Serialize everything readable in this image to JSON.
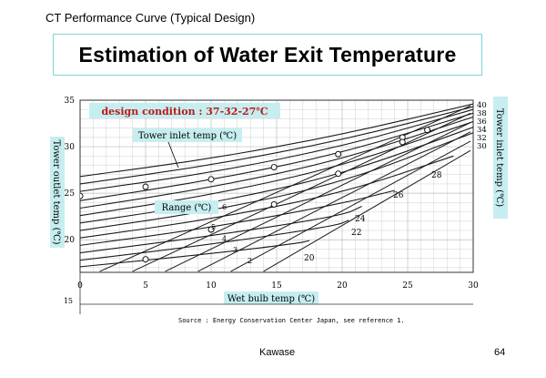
{
  "slide": {
    "header": "CT Performance Curve (Typical Design)",
    "title": "Estimation of Water Exit Temperature",
    "footer_left": "Kawase",
    "footer_right": "64"
  },
  "colors": {
    "label_box": "#c6eef0",
    "title_border": "#7fd3d3",
    "condition_text": "#c01818",
    "curve": "#1a1a1a",
    "grid": "#bdbdbd"
  },
  "chart_data": {
    "type": "line",
    "condition_label": "design condition : 37-32-27℃",
    "tower_inlet_label": "Tower inlet temp (℃)",
    "range_label": "Range (℃)",
    "xlabel": "Wet bulb temp (℃)",
    "ylabel": "Tower outlet temp (℃)",
    "y2label": "Tower inlet temp (℃)",
    "source": "Source : Energy Conservation Center Japan, see reference 1.",
    "xlim": [
      0,
      30
    ],
    "ylim": [
      16.5,
      35
    ],
    "x_ticks": [
      0,
      5,
      10,
      15,
      20,
      25,
      30
    ],
    "y_ticks": [
      15,
      20,
      25,
      30,
      35
    ],
    "right_tick_labels": [
      "40",
      "38",
      "36",
      "34",
      "32",
      "30"
    ],
    "range_tick_labels": [
      "6",
      "5",
      "4",
      "3",
      "2"
    ],
    "inlet_curve_labels": [
      "28",
      "26",
      "24",
      "22",
      "20"
    ],
    "inlet_curves": [
      {
        "points": [
          [
            0,
            26.8
          ],
          [
            10,
            28.7
          ],
          [
            20,
            31.3
          ],
          [
            30,
            34.6
          ]
        ]
      },
      {
        "points": [
          [
            0,
            26.0
          ],
          [
            10,
            28.0
          ],
          [
            20,
            30.7
          ],
          [
            30,
            34.3
          ]
        ]
      },
      {
        "points": [
          [
            0,
            25.2
          ],
          [
            10,
            27.2
          ],
          [
            20,
            30.0
          ],
          [
            30,
            34.0
          ]
        ]
      },
      {
        "points": [
          [
            0,
            24.2
          ],
          [
            10,
            26.4
          ],
          [
            20,
            29.3
          ],
          [
            30,
            33.6
          ]
        ]
      },
      {
        "points": [
          [
            0,
            23.4
          ],
          [
            10,
            25.6
          ],
          [
            20,
            28.6
          ],
          [
            30,
            33.2
          ]
        ]
      },
      {
        "points": [
          [
            0,
            22.6
          ],
          [
            10,
            24.8
          ],
          [
            20,
            27.9
          ],
          [
            30,
            32.7
          ]
        ]
      },
      {
        "points": [
          [
            0,
            21.8
          ],
          [
            10,
            23.9
          ],
          [
            20,
            27.0
          ],
          [
            30,
            32.1
          ]
        ]
      },
      {
        "points": [
          [
            0,
            21.0
          ],
          [
            10,
            23.1
          ],
          [
            20,
            26.1
          ],
          [
            30,
            31.5
          ]
        ]
      },
      {
        "points": [
          [
            0,
            20.2
          ],
          [
            10,
            22.2
          ],
          [
            20,
            25.0
          ],
          [
            28.5,
            29.0
          ]
        ]
      },
      {
        "points": [
          [
            0,
            19.4
          ],
          [
            10,
            21.3
          ],
          [
            20,
            23.9
          ],
          [
            24,
            25.3
          ]
        ]
      },
      {
        "points": [
          [
            0,
            18.6
          ],
          [
            10,
            20.4
          ],
          [
            20,
            22.6
          ],
          [
            21.5,
            23.6
          ]
        ]
      },
      {
        "points": [
          [
            0,
            17.8
          ],
          [
            10,
            19.5
          ],
          [
            19.5,
            21.5
          ],
          [
            20.5,
            22.1
          ]
        ]
      },
      {
        "points": [
          [
            0,
            17.1
          ],
          [
            10,
            18.5
          ],
          [
            16.5,
            19.6
          ],
          [
            17.5,
            19.9
          ]
        ]
      }
    ],
    "range_lines": [
      {
        "points": [
          [
            1.5,
            16.6
          ],
          [
            29.8,
            34.4
          ]
        ]
      },
      {
        "points": [
          [
            4.0,
            16.6
          ],
          [
            29.8,
            33.6
          ]
        ]
      },
      {
        "points": [
          [
            6.5,
            16.6
          ],
          [
            29.8,
            32.6
          ]
        ]
      },
      {
        "points": [
          [
            9.0,
            16.6
          ],
          [
            29.8,
            31.6
          ]
        ]
      },
      {
        "points": [
          [
            11.5,
            16.6
          ],
          [
            29.8,
            30.6
          ]
        ]
      },
      {
        "points": [
          [
            14.0,
            16.6
          ],
          [
            29.8,
            29.6
          ]
        ]
      }
    ],
    "markers": [
      [
        0,
        24.7
      ],
      [
        5,
        25.7
      ],
      [
        10,
        26.5
      ],
      [
        14.8,
        27.8
      ],
      [
        19.7,
        29.2
      ],
      [
        24.6,
        31.0
      ],
      [
        5,
        17.9
      ],
      [
        10,
        21.1
      ],
      [
        14.8,
        23.8
      ],
      [
        19.7,
        27.1
      ],
      [
        24.6,
        30.5
      ],
      [
        26.5,
        31.8
      ]
    ]
  }
}
